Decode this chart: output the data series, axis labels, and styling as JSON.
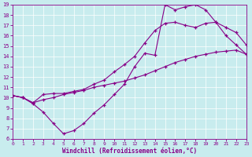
{
  "bg_color": "#c8ecee",
  "line_color": "#880088",
  "xlim": [
    0,
    23
  ],
  "ylim": [
    6,
    19
  ],
  "xticks": [
    0,
    1,
    2,
    3,
    4,
    5,
    6,
    7,
    8,
    9,
    10,
    11,
    12,
    13,
    14,
    15,
    16,
    17,
    18,
    19,
    20,
    21,
    22,
    23
  ],
  "yticks": [
    6,
    7,
    8,
    9,
    10,
    11,
    12,
    13,
    14,
    15,
    16,
    17,
    18,
    19
  ],
  "xlabel": "Windchill (Refroidissement éolien,°C)",
  "line1_x": [
    0,
    1,
    2,
    3,
    4,
    5,
    6,
    7,
    8,
    9,
    10,
    11,
    12,
    13,
    14,
    15,
    16,
    17,
    18,
    19,
    20,
    21,
    22,
    23
  ],
  "line1_y": [
    10.2,
    10.0,
    9.4,
    8.6,
    7.5,
    6.5,
    6.8,
    7.5,
    8.5,
    9.3,
    10.3,
    11.3,
    13.0,
    14.3,
    14.1,
    19.0,
    18.5,
    18.8,
    19.0,
    18.5,
    17.3,
    16.0,
    15.1,
    14.2
  ],
  "line2_x": [
    0,
    1,
    2,
    3,
    4,
    5,
    6,
    7,
    8,
    9,
    10,
    11,
    12,
    13,
    14,
    15,
    16,
    17,
    18,
    19,
    20,
    21,
    22,
    23
  ],
  "line2_y": [
    10.2,
    10.0,
    9.5,
    10.3,
    10.4,
    10.4,
    10.6,
    10.8,
    11.3,
    11.7,
    12.5,
    13.2,
    14.0,
    15.3,
    16.5,
    17.2,
    17.3,
    17.0,
    16.8,
    17.2,
    17.3,
    16.8,
    16.3,
    15.1
  ],
  "line3_x": [
    0,
    1,
    2,
    3,
    4,
    5,
    6,
    7,
    8,
    9,
    10,
    11,
    12,
    13,
    14,
    15,
    16,
    17,
    18,
    19,
    20,
    21,
    22,
    23
  ],
  "line3_y": [
    10.2,
    10.0,
    9.5,
    9.8,
    10.0,
    10.3,
    10.5,
    10.7,
    11.0,
    11.2,
    11.4,
    11.6,
    11.9,
    12.2,
    12.6,
    13.0,
    13.4,
    13.7,
    14.0,
    14.2,
    14.4,
    14.5,
    14.6,
    14.2
  ]
}
